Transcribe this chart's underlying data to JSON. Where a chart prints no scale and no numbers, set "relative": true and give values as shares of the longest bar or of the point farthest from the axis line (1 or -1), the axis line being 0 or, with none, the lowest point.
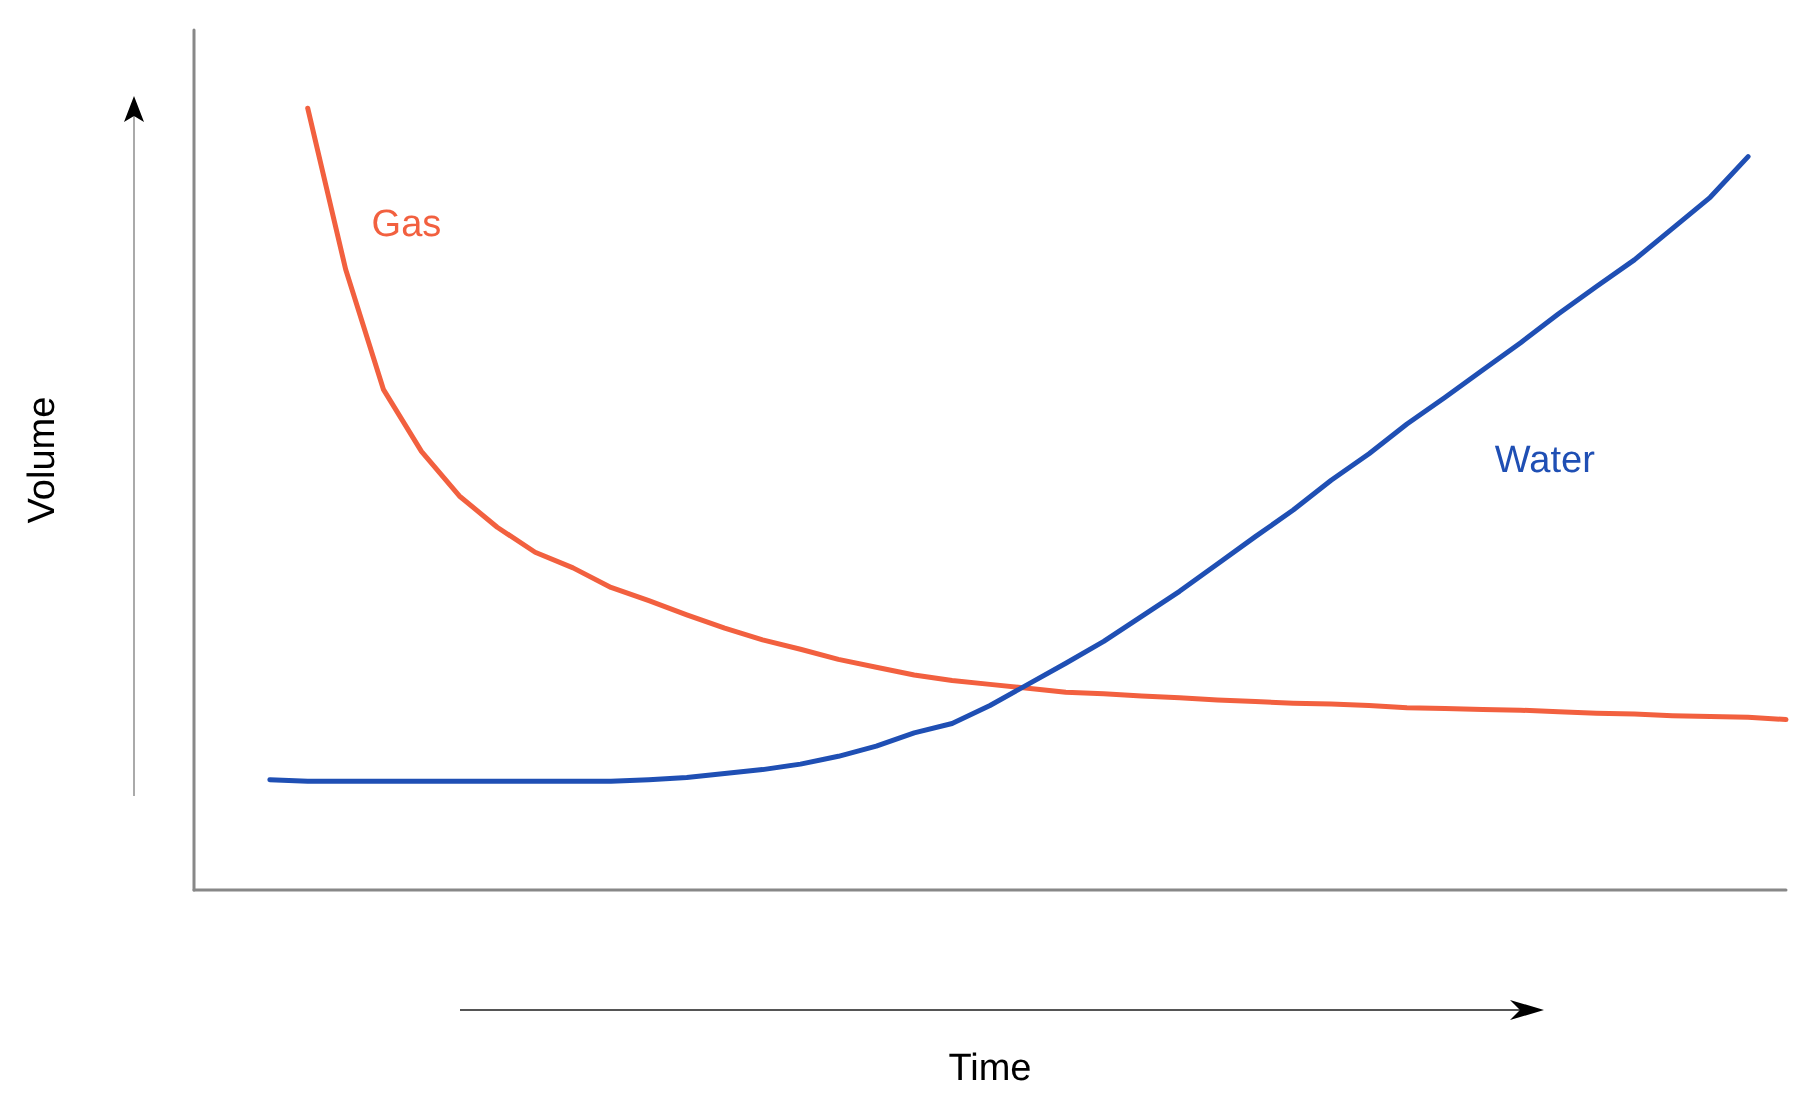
{
  "chart_data": {
    "type": "line",
    "relative": true,
    "xlabel": "Time",
    "ylabel": "Volume",
    "marker": "none",
    "grid": false,
    "legend": false,
    "categories": [
      null,
      null,
      null,
      null,
      null,
      null,
      null,
      null,
      null,
      null,
      null,
      null,
      null,
      null,
      null,
      null,
      null,
      null,
      null,
      null,
      null,
      null,
      null,
      null,
      null,
      null,
      null,
      null,
      null,
      null,
      null,
      null,
      null,
      null,
      null,
      null,
      null,
      null,
      null,
      null,
      null,
      null,
      null
    ],
    "series": [
      {
        "name": "Gas",
        "color": "#f2603f",
        "values": [
          null,
          null,
          null,
          1,
          0.794,
          0.64,
          0.561,
          0.504,
          0.464,
          0.432,
          0.412,
          0.387,
          0.37,
          0.352,
          0.335,
          0.32,
          0.308,
          0.295,
          0.285,
          0.275,
          0.268,
          0.263,
          0.258,
          0.253,
          0.251,
          0.248,
          0.246,
          0.243,
          0.241,
          0.239,
          0.238,
          0.236,
          0.233,
          0.232,
          0.231,
          0.23,
          0.228,
          0.226,
          0.225,
          0.223,
          0.222,
          0.221,
          0.218
        ]
      },
      {
        "name": "Water",
        "color": "#1f4fb4",
        "values": [
          null,
          null,
          0.141,
          0.139,
          0.139,
          0.139,
          0.139,
          0.139,
          0.139,
          0.139,
          0.139,
          0.139,
          0.141,
          0.144,
          0.149,
          0.154,
          0.161,
          0.171,
          0.184,
          0.201,
          0.213,
          0.236,
          0.263,
          0.29,
          0.318,
          0.35,
          0.382,
          0.417,
          0.452,
          0.486,
          0.524,
          0.558,
          0.596,
          0.63,
          0.665,
          0.7,
          0.737,
          0.772,
          0.806,
          0.846,
          0.886,
          0.938,
          null
        ]
      }
    ]
  }
}
